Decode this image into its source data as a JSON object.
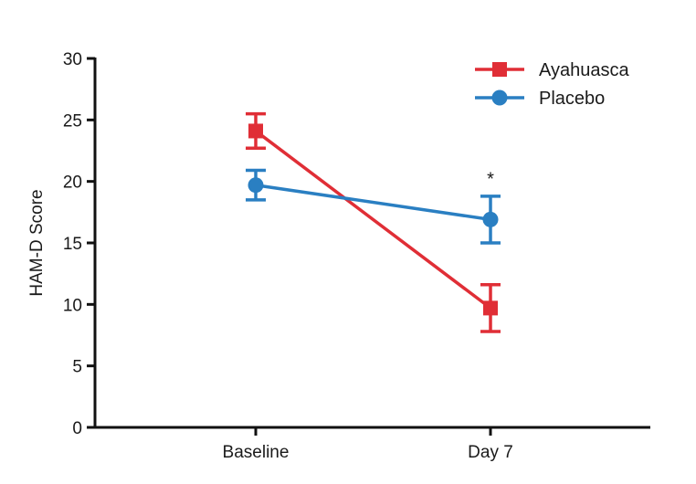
{
  "chart_data": {
    "type": "line",
    "title": "",
    "xlabel": "",
    "ylabel": "HAM-D Score",
    "categories": [
      "Baseline",
      "Day 7"
    ],
    "ylim": [
      0,
      30
    ],
    "yticks": [
      0,
      5,
      10,
      15,
      20,
      25,
      30
    ],
    "grid": false,
    "legend_position": "top-right",
    "series": [
      {
        "name": "Ayahuasca",
        "color": "#e02e36",
        "marker": "square",
        "values": [
          24.1,
          9.7
        ],
        "err_low": [
          22.7,
          7.8
        ],
        "err_high": [
          25.5,
          11.6
        ]
      },
      {
        "name": "Placebo",
        "color": "#2a7fc2",
        "marker": "circle",
        "values": [
          19.7,
          16.9
        ],
        "err_low": [
          18.5,
          15.0
        ],
        "err_high": [
          20.9,
          18.8
        ]
      }
    ],
    "annotations": [
      {
        "text": "*",
        "category": "Day 7",
        "y": 20.3
      }
    ]
  }
}
